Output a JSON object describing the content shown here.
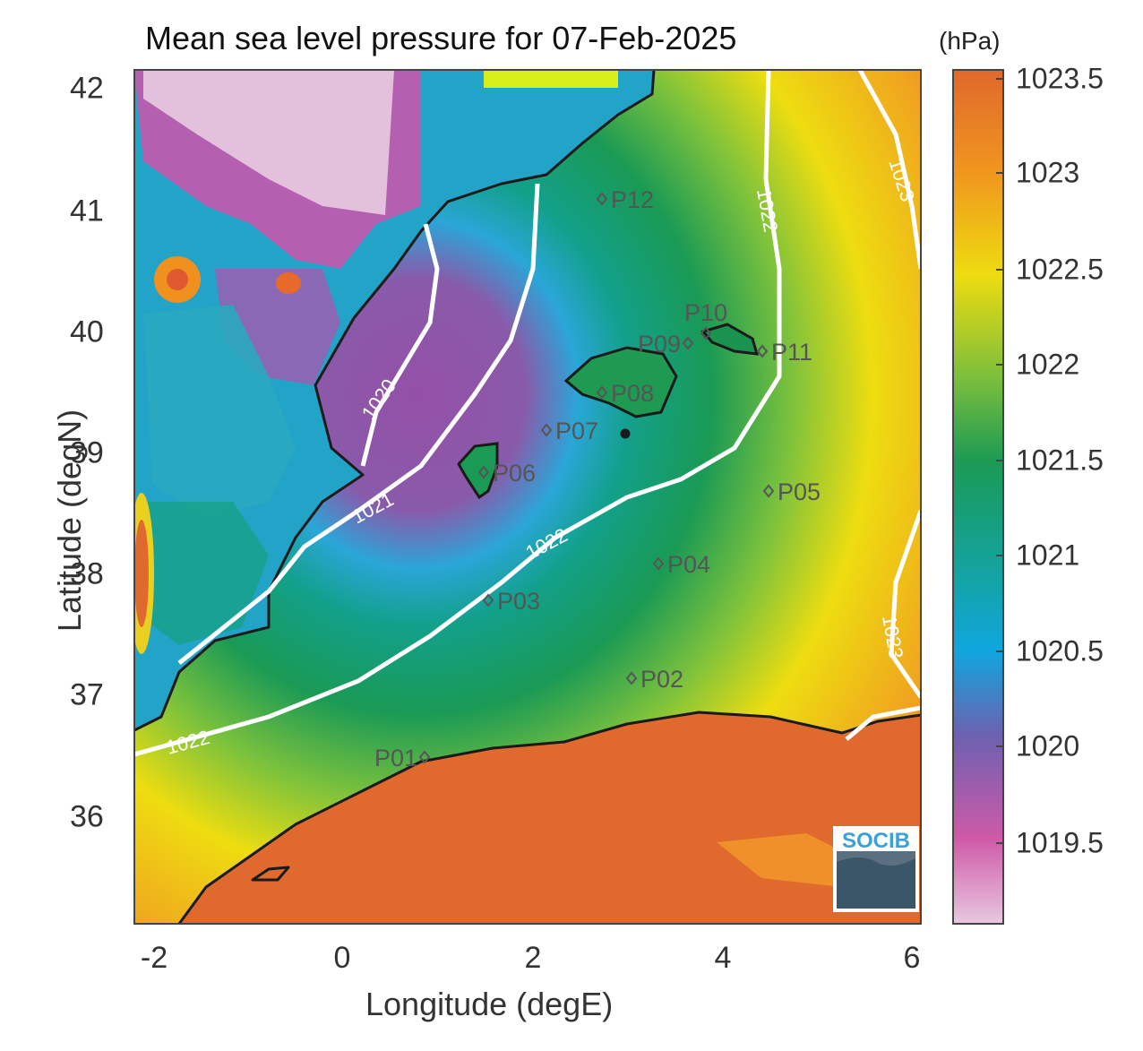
{
  "title": "Mean sea level pressure for 07-Feb-2025",
  "colorbar": {
    "unit": "(hPa)",
    "ticks": [
      "1023.5",
      "1023",
      "1022.5",
      "1022",
      "1021.5",
      "1021",
      "1020.5",
      "1020",
      "1019.5"
    ]
  },
  "axes": {
    "xlabel": "Longitude (degE)",
    "ylabel": "Latitude (degN)",
    "xticks": [
      "-2",
      "0",
      "2",
      "4",
      "6"
    ],
    "yticks": [
      "42",
      "41",
      "40",
      "39",
      "38",
      "37",
      "36"
    ]
  },
  "contour_labels": [
    "1020",
    "1021",
    "1022",
    "1022",
    "1022",
    "1023",
    "1023"
  ],
  "stations": [
    {
      "name": "P01"
    },
    {
      "name": "P02"
    },
    {
      "name": "P03"
    },
    {
      "name": "P04"
    },
    {
      "name": "P05"
    },
    {
      "name": "P06"
    },
    {
      "name": "P07"
    },
    {
      "name": "P08"
    },
    {
      "name": "P09"
    },
    {
      "name": "P10"
    },
    {
      "name": "P11"
    },
    {
      "name": "P12"
    }
  ],
  "logo": "SOCIB",
  "colors": {
    "land_high": "#e06a2e",
    "sea_low": "#9a54a8",
    "mid_green": "#1a9a55",
    "yellow": "#eedd10",
    "coast": "#1a1a1a",
    "contour": "#ffffff"
  }
}
